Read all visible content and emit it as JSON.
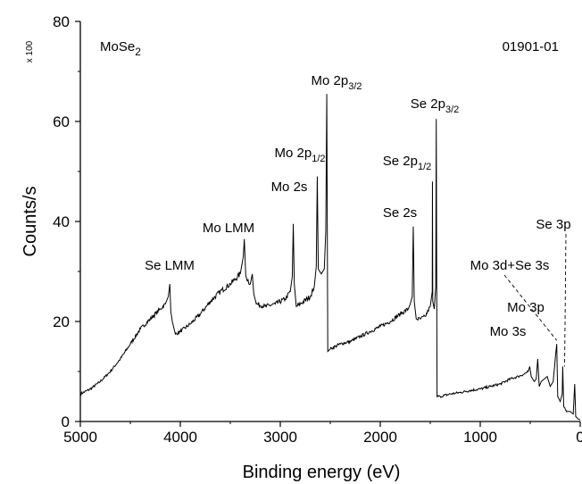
{
  "chart_data": {
    "type": "line",
    "title": "MoSe2",
    "sample_id": "01901-01",
    "xlabel": "Binding energy (eV)",
    "ylabel": "Counts/s",
    "y_multiplier": "x 100",
    "xlim": [
      5000,
      0
    ],
    "ylim": [
      0,
      80
    ],
    "x_reversed": true,
    "x_ticks": [
      5000,
      4000,
      3000,
      2000,
      1000,
      0
    ],
    "x_tick_labels": [
      "5000",
      "4000",
      "3000",
      "2000",
      "1000",
      "0"
    ],
    "y_ticks": [
      0,
      20,
      40,
      60,
      80
    ],
    "y_tick_labels": [
      "0",
      "20",
      "40",
      "60",
      "80"
    ],
    "grid": false,
    "series": [
      {
        "points": [
          [
            5000,
            5.5
          ],
          [
            4900,
            6.5
          ],
          [
            4800,
            8.0
          ],
          [
            4700,
            10.0
          ],
          [
            4600,
            12.5
          ],
          [
            4500,
            15.5
          ],
          [
            4400,
            18.5
          ],
          [
            4300,
            20.5
          ],
          [
            4200,
            22.5
          ],
          [
            4150,
            23.5
          ],
          [
            4120,
            25.0
          ],
          [
            4105,
            27.5
          ],
          [
            4095,
            22.0
          ],
          [
            4080,
            20.0
          ],
          [
            4050,
            17.5
          ],
          [
            4000,
            18.0
          ],
          [
            3900,
            19.5
          ],
          [
            3800,
            21.5
          ],
          [
            3700,
            24.0
          ],
          [
            3600,
            26.0
          ],
          [
            3500,
            27.5
          ],
          [
            3450,
            28.5
          ],
          [
            3400,
            29.5
          ],
          [
            3370,
            33.0
          ],
          [
            3360,
            36.5
          ],
          [
            3345,
            29.0
          ],
          [
            3300,
            27.5
          ],
          [
            3280,
            29.5
          ],
          [
            3265,
            25.5
          ],
          [
            3240,
            23.5
          ],
          [
            3150,
            23.0
          ],
          [
            3050,
            23.5
          ],
          [
            2950,
            24.5
          ],
          [
            2900,
            26.0
          ],
          [
            2880,
            29.0
          ],
          [
            2870,
            39.5
          ],
          [
            2860,
            27.5
          ],
          [
            2840,
            23.0
          ],
          [
            2800,
            23.5
          ],
          [
            2700,
            25.0
          ],
          [
            2660,
            27.0
          ],
          [
            2640,
            31.0
          ],
          [
            2630,
            49.0
          ],
          [
            2620,
            30.5
          ],
          [
            2590,
            29.5
          ],
          [
            2560,
            30.5
          ],
          [
            2545,
            38.0
          ],
          [
            2535,
            65.5
          ],
          [
            2525,
            14.0
          ],
          [
            2500,
            14.5
          ],
          [
            2400,
            15.5
          ],
          [
            2300,
            16.0
          ],
          [
            2200,
            17.0
          ],
          [
            2100,
            18.0
          ],
          [
            2000,
            19.0
          ],
          [
            1900,
            20.0
          ],
          [
            1800,
            21.5
          ],
          [
            1720,
            22.5
          ],
          [
            1700,
            23.5
          ],
          [
            1680,
            25.0
          ],
          [
            1670,
            39.0
          ],
          [
            1660,
            24.0
          ],
          [
            1640,
            20.5
          ],
          [
            1600,
            20.5
          ],
          [
            1550,
            21.0
          ],
          [
            1500,
            23.0
          ],
          [
            1480,
            26.0
          ],
          [
            1478,
            48.0
          ],
          [
            1475,
            24.0
          ],
          [
            1460,
            22.5
          ],
          [
            1445,
            27.0
          ],
          [
            1440,
            60.5
          ],
          [
            1432,
            5.0
          ],
          [
            1400,
            5.0
          ],
          [
            1300,
            5.5
          ],
          [
            1200,
            5.8
          ],
          [
            1100,
            6.2
          ],
          [
            1000,
            6.5
          ],
          [
            900,
            7.0
          ],
          [
            800,
            7.5
          ],
          [
            700,
            8.5
          ],
          [
            620,
            9.0
          ],
          [
            560,
            9.5
          ],
          [
            520,
            10.0
          ],
          [
            505,
            11.0
          ],
          [
            490,
            9.0
          ],
          [
            460,
            8.0
          ],
          [
            440,
            8.5
          ],
          [
            425,
            12.5
          ],
          [
            410,
            7.0
          ],
          [
            390,
            8.0
          ],
          [
            360,
            8.5
          ],
          [
            330,
            9.0
          ],
          [
            300,
            7.0
          ],
          [
            270,
            8.0
          ],
          [
            235,
            15.5
          ],
          [
            225,
            5.0
          ],
          [
            200,
            4.0
          ],
          [
            180,
            5.5
          ],
          [
            175,
            11.0
          ],
          [
            165,
            3.0
          ],
          [
            130,
            2.0
          ],
          [
            100,
            2.0
          ],
          [
            70,
            1.5
          ],
          [
            55,
            7.5
          ],
          [
            45,
            1.0
          ],
          [
            20,
            0.5
          ],
          [
            0,
            0.3
          ]
        ]
      }
    ],
    "annotations": [
      {
        "label": "Se LMM",
        "peak_x": 4110
      },
      {
        "label": "Mo LMM",
        "peak_x": 3360
      },
      {
        "label": "Mo 2s",
        "peak_x": 2870
      },
      {
        "label": "Mo 2p1/2",
        "peak_x": 2630
      },
      {
        "label": "Mo 2p3/2",
        "peak_x": 2535
      },
      {
        "label": "Se 2s",
        "peak_x": 1670
      },
      {
        "label": "Se 2p1/2",
        "peak_x": 1478
      },
      {
        "label": "Se 2p3/2",
        "peak_x": 1440
      },
      {
        "label": "Mo 3d+Se 3s",
        "peak_x": 235
      },
      {
        "label": "Mo 3p",
        "peak_x": 425
      },
      {
        "label": "Mo 3s",
        "peak_x": 505
      },
      {
        "label": "Se 3p",
        "peak_x": 165
      }
    ]
  }
}
